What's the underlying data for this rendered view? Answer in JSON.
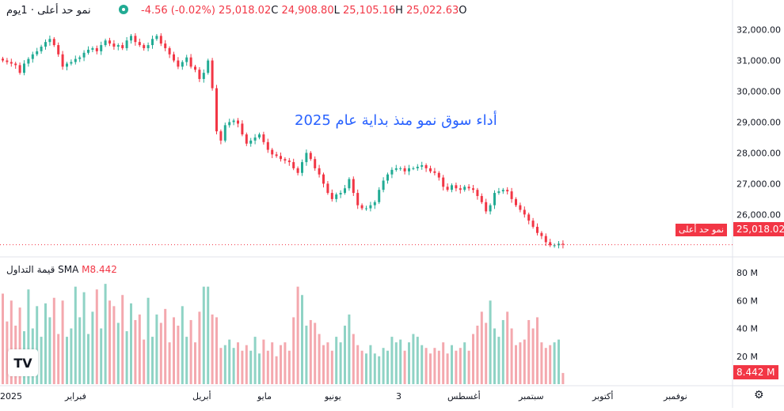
{
  "header": {
    "symbol": "نمو حد أعلى",
    "interval": "1يوم",
    "dot": "·",
    "status_color": "#22ab94",
    "ohlc": {
      "o_label": "O",
      "o": "25,022.63",
      "h_label": "H",
      "h": "25,105.16",
      "l_label": "L",
      "l": "24,908.80",
      "c_label": "C",
      "c": "25,018.02",
      "change": "-4.56 (-0.02%)"
    }
  },
  "annotation": "أداء  سوق نمو منذ بداية عام 2025",
  "colors": {
    "up": "#22ab94",
    "down": "#f23645",
    "vol_up": "#8fd3c5",
    "vol_down": "#f4a8ae",
    "annotation": "#2962ff",
    "label_tag": "#131722"
  },
  "price_axis": {
    "labels": [
      "32,000.00",
      "31,000.00",
      "30,000.00",
      "29,000.00",
      "28,000.00",
      "27,000.00",
      "26,000.00"
    ],
    "last_value_tag": "25,018.02",
    "series_tag": "نمو حد أعلى"
  },
  "volume": {
    "title": "قيمة التداول",
    "sma_label": "SMA",
    "sma_value": "8.442",
    "sma_unit": "M",
    "axis_labels": [
      "80 M",
      "60 M",
      "40 M",
      "20 M"
    ],
    "last_value_tag": "8.442 M"
  },
  "time_axis": {
    "labels": [
      "2025",
      "فبراير",
      "أبريل",
      "مايو",
      "يونيو",
      "3",
      "أغسطس",
      "سبتمبر",
      "أكتوبر",
      "نوفمبر"
    ]
  },
  "logo_text": "TV",
  "gear_icon": "settings",
  "chart_data": {
    "type": "candlestick",
    "ylim": [
      24700,
      32400
    ],
    "volume_ylim": [
      0,
      84
    ],
    "last_close": 25018.02,
    "closes": [
      31000,
      30950,
      30900,
      30850,
      30600,
      30900,
      31050,
      31200,
      31300,
      31450,
      31600,
      31700,
      31500,
      31200,
      30800,
      30900,
      30950,
      31050,
      31100,
      31250,
      31350,
      31400,
      31300,
      31500,
      31650,
      31550,
      31450,
      31500,
      31400,
      31650,
      31800,
      31600,
      31500,
      31400,
      31500,
      31700,
      31800,
      31550,
      31400,
      31200,
      31000,
      30800,
      30950,
      31100,
      30800,
      30700,
      30400,
      30600,
      31000,
      30100,
      28700,
      28400,
      28900,
      29000,
      29050,
      28950,
      28600,
      28300,
      28400,
      28500,
      28600,
      28350,
      28100,
      27950,
      27900,
      27800,
      27750,
      27700,
      27500,
      27350,
      27700,
      28000,
      27800,
      27500,
      27300,
      27000,
      26700,
      26500,
      26650,
      26700,
      26850,
      27150,
      26700,
      26300,
      26200,
      26200,
      26300,
      26400,
      26800,
      27100,
      27300,
      27450,
      27500,
      27500,
      27400,
      27500,
      27500,
      27550,
      27600,
      27500,
      27400,
      27350,
      27200,
      26900,
      26800,
      26950,
      26850,
      26800,
      26900,
      26850,
      26800,
      26600,
      26400,
      26100,
      26300,
      26700,
      26750,
      26800,
      26750,
      26500,
      26300,
      26150,
      26000,
      25800,
      25600,
      25400,
      25300,
      25100,
      25000,
      25000,
      25050,
      25018
    ],
    "volumes": [
      65,
      45,
      60,
      42,
      55,
      38,
      68,
      40,
      56,
      34,
      58,
      48,
      62,
      36,
      60,
      34,
      40,
      70,
      48,
      66,
      36,
      52,
      68,
      40,
      72,
      60,
      56,
      44,
      64,
      38,
      58,
      46,
      50,
      32,
      62,
      34,
      50,
      44,
      54,
      30,
      48,
      42,
      56,
      34,
      46,
      30,
      52,
      70,
      70,
      50,
      48,
      26,
      28,
      32,
      26,
      30,
      24,
      28,
      24,
      34,
      22,
      32,
      24,
      30,
      20,
      28,
      30,
      24,
      48,
      70,
      64,
      42,
      46,
      44,
      36,
      28,
      30,
      24,
      34,
      30,
      42,
      50,
      36,
      28,
      24,
      22,
      28,
      22,
      20,
      26,
      24,
      34,
      30,
      32,
      24,
      30,
      36,
      34,
      28,
      26,
      22,
      26,
      24,
      30,
      22,
      28,
      24,
      26,
      30,
      24,
      36,
      42,
      52,
      44,
      60,
      40,
      34,
      46,
      52,
      40,
      28,
      30,
      32,
      46,
      40,
      48,
      30,
      26,
      28,
      30,
      32,
      8
    ]
  }
}
